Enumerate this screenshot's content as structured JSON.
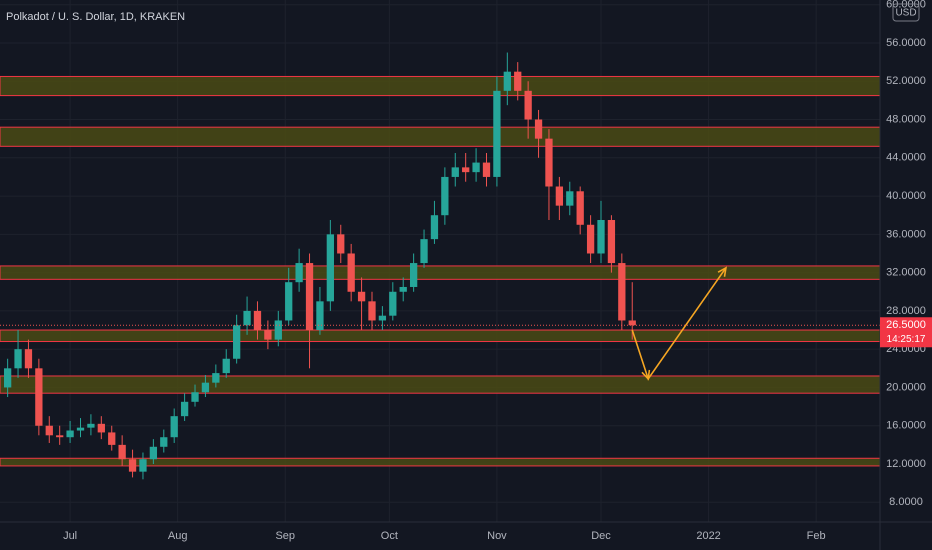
{
  "chart_data": {
    "type": "candlestick",
    "title": "Polkadot / U. S. Dollar, 1D, KRAKEN",
    "currency": "USD",
    "x": [
      -18,
      -15,
      -12,
      -9,
      -6,
      -3,
      0,
      3,
      6,
      9,
      12,
      15,
      18,
      21,
      24,
      27,
      30,
      33,
      36,
      39,
      42,
      45,
      48,
      51,
      54,
      57,
      60,
      63,
      66,
      69,
      72,
      75,
      78,
      81,
      84,
      87,
      90,
      93,
      96,
      99,
      102,
      105,
      108,
      111,
      114,
      117,
      120,
      123,
      126,
      129,
      132,
      135,
      138,
      141,
      144,
      147,
      150,
      153,
      156,
      159,
      162
    ],
    "open": [
      20,
      22,
      24,
      22,
      16,
      15,
      14.8,
      15.5,
      15.8,
      16.2,
      15.3,
      14,
      12.5,
      11.2,
      12.5,
      13.8,
      14.8,
      17,
      18.5,
      19.5,
      20.5,
      21.5,
      23,
      26.5,
      28,
      26,
      25,
      27,
      31,
      33,
      26,
      29,
      36,
      34,
      30,
      29,
      27,
      27.5,
      30,
      30.5,
      33,
      35.5,
      38,
      42,
      43,
      42.5,
      43.5,
      42,
      51,
      53,
      51,
      48,
      46,
      41,
      39,
      40.5,
      37,
      34,
      37.5,
      33,
      27
    ],
    "high": [
      23,
      26,
      25,
      23,
      17,
      16,
      16.5,
      16.8,
      17.2,
      17,
      16,
      15,
      13.5,
      13.2,
      14.6,
      15.6,
      17.8,
      19.4,
      20.3,
      21.3,
      22.4,
      24,
      27.6,
      29.5,
      29,
      27,
      28,
      32.5,
      34.5,
      34,
      30.5,
      37.5,
      37,
      35,
      31.5,
      30,
      28.5,
      31,
      31.5,
      34,
      36.5,
      39.5,
      43,
      44.5,
      44.5,
      45,
      44.5,
      52.5,
      55,
      54,
      52,
      49,
      47,
      42,
      41.5,
      41,
      38,
      39.5,
      38,
      34,
      31
    ],
    "low": [
      19,
      21,
      21,
      15,
      14.2,
      14,
      14.2,
      14.8,
      15,
      14.6,
      13.4,
      11.8,
      10.6,
      10.4,
      12,
      13.2,
      14.2,
      16.5,
      18,
      19,
      20,
      21,
      22.5,
      25.5,
      25,
      24,
      24.3,
      26.5,
      30,
      22,
      25.5,
      28,
      33,
      29,
      26,
      26,
      26,
      27,
      29,
      30,
      32.5,
      35,
      37,
      41,
      41.5,
      41.5,
      41,
      41,
      49.5,
      50,
      46,
      44,
      37.5,
      37.5,
      38,
      36,
      33,
      33,
      32,
      26,
      25
    ],
    "close": [
      22,
      24,
      22,
      16,
      15,
      14.8,
      15.5,
      15.8,
      16.2,
      15.3,
      14,
      12.5,
      11.2,
      12.5,
      13.8,
      14.8,
      17,
      18.5,
      19.5,
      20.5,
      21.5,
      23,
      26.5,
      28,
      26,
      25,
      27,
      31,
      33,
      26,
      29,
      36,
      34,
      30,
      29,
      27,
      27.5,
      30,
      30.5,
      33,
      35.5,
      38,
      42,
      43,
      42.5,
      43.5,
      42,
      51,
      53,
      51,
      48,
      46,
      41,
      39,
      40.5,
      37,
      34,
      37.5,
      33,
      27,
      26.5
    ],
    "up_color": "#26a69a",
    "down_color": "#ef5350",
    "zones": [
      [
        52.5,
        50.5
      ],
      [
        47.2,
        45.2
      ],
      [
        32.7,
        31.3
      ],
      [
        26,
        24.8
      ],
      [
        21.2,
        19.4
      ],
      [
        12.6,
        11.8
      ]
    ],
    "zone_fill": "#4a4a14",
    "zone_border": "#f23645",
    "arrow": {
      "x": [
        162,
        166.6,
        189
      ],
      "y": [
        26,
        20.9,
        32.5
      ],
      "color": "#f5a623"
    },
    "last_price": {
      "value": 26.5,
      "label": "26.5000"
    },
    "countdown": "14:25:17",
    "xlim": [
      -20.2,
      233.4
    ],
    "xticks": [
      {
        "value": 0,
        "label": "Jul"
      },
      {
        "value": 31,
        "label": "Aug"
      },
      {
        "value": 62,
        "label": "Sep"
      },
      {
        "value": 92,
        "label": "Oct"
      },
      {
        "value": 123,
        "label": "Nov"
      },
      {
        "value": 153,
        "label": "Dec"
      },
      {
        "value": 184,
        "label": "2022"
      },
      {
        "value": 215,
        "label": "Feb"
      }
    ],
    "ylim": [
      5.94,
      60.49
    ],
    "yticks": [
      {
        "value": 8,
        "label": "8.0000"
      },
      {
        "value": 12,
        "label": "12.0000"
      },
      {
        "value": 16,
        "label": "16.0000"
      },
      {
        "value": 20,
        "label": "20.0000"
      },
      {
        "value": 24,
        "label": "24.0000"
      },
      {
        "value": 28,
        "label": "28.0000"
      },
      {
        "value": 32,
        "label": "32.0000"
      },
      {
        "value": 36,
        "label": "36.0000"
      },
      {
        "value": 40,
        "label": "40.0000"
      },
      {
        "value": 44,
        "label": "44.0000"
      },
      {
        "value": 48,
        "label": "48.0000"
      },
      {
        "value": 52,
        "label": "52.0000"
      },
      {
        "value": 56,
        "label": "56.0000"
      },
      {
        "value": 60,
        "label": "60.0000"
      }
    ],
    "grid": true
  }
}
